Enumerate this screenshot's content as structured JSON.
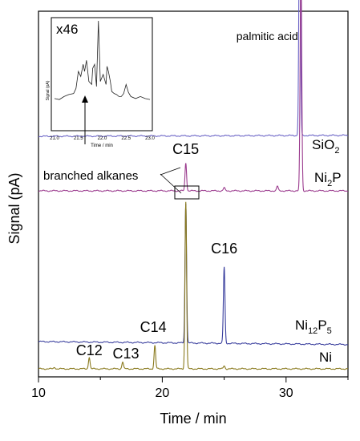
{
  "chart_data": {
    "type": "line",
    "xlabel": "Time / min",
    "ylabel": "Signal (pA)",
    "xlim": [
      10,
      35
    ],
    "x_ticks": [
      "10",
      "20",
      "30"
    ],
    "series": [
      {
        "name": "SiO2",
        "label_main": "SiO",
        "label_sub": "2",
        "color": "#6a63c6",
        "peaks": [
          {
            "x": 31.1,
            "height_pA": 330,
            "label": "palmitic acid"
          }
        ]
      },
      {
        "name": "Ni2P",
        "label_main": "Ni",
        "label_sub": "2",
        "label_end": "P",
        "color": "#9b3b8e",
        "peaks": [
          {
            "x": 21.9,
            "height_pA": 36,
            "label": "C15"
          },
          {
            "x": 25.0,
            "height_pA": 4,
            "label": ""
          },
          {
            "x": 29.3,
            "height_pA": 6,
            "label": ""
          },
          {
            "x": 31.2,
            "height_pA": 300,
            "label": ""
          }
        ]
      },
      {
        "name": "Ni12P5",
        "label_main": "Ni",
        "label_sub": "12",
        "label_mid": "P",
        "label_sub2": "5",
        "color": "#3a3f9e",
        "peaks": [
          {
            "x": 21.9,
            "height_pA": 180,
            "label": ""
          },
          {
            "x": 25.0,
            "height_pA": 98,
            "label": "C16"
          }
        ]
      },
      {
        "name": "Ni",
        "label_main": "Ni",
        "color": "#8a7a1e",
        "peaks": [
          {
            "x": 11.3,
            "height_pA": 2,
            "label": ""
          },
          {
            "x": 14.1,
            "height_pA": 15,
            "label": "C12"
          },
          {
            "x": 16.8,
            "height_pA": 9,
            "label": "C13"
          },
          {
            "x": 19.4,
            "height_pA": 30,
            "label": "C14"
          },
          {
            "x": 21.9,
            "height_pA": 215,
            "label": ""
          },
          {
            "x": 25.0,
            "height_pA": 4,
            "label": ""
          }
        ]
      }
    ],
    "annotation": "branched alkanes",
    "inset": {
      "magnification": "x46",
      "xlabel": "Time / min",
      "ylabel": "Signal (pA)",
      "xlim": [
        21.0,
        23.0
      ],
      "x_ticks": [
        "21.0",
        "21.5",
        "22.0",
        "22.5",
        "23.0"
      ],
      "trace": [
        [
          21.0,
          0.28
        ],
        [
          21.1,
          0.27
        ],
        [
          21.2,
          0.3
        ],
        [
          21.3,
          0.32
        ],
        [
          21.4,
          0.33
        ],
        [
          21.45,
          0.38
        ],
        [
          21.5,
          0.55
        ],
        [
          21.55,
          0.5
        ],
        [
          21.6,
          0.62
        ],
        [
          21.63,
          0.55
        ],
        [
          21.67,
          0.66
        ],
        [
          21.72,
          0.45
        ],
        [
          21.78,
          0.42
        ],
        [
          21.8,
          0.58
        ],
        [
          21.84,
          0.62
        ],
        [
          21.88,
          0.4
        ],
        [
          21.92,
          1.2
        ],
        [
          21.96,
          0.45
        ],
        [
          22.02,
          0.52
        ],
        [
          22.08,
          0.42
        ],
        [
          22.1,
          0.6
        ],
        [
          22.13,
          0.55
        ],
        [
          22.17,
          0.45
        ],
        [
          22.2,
          0.35
        ],
        [
          22.25,
          0.33
        ],
        [
          22.3,
          0.32
        ],
        [
          22.35,
          0.3
        ],
        [
          22.4,
          0.3
        ],
        [
          22.45,
          0.33
        ],
        [
          22.5,
          0.42
        ],
        [
          22.55,
          0.34
        ],
        [
          22.6,
          0.3
        ],
        [
          22.7,
          0.28
        ],
        [
          22.8,
          0.3
        ],
        [
          22.9,
          0.28
        ],
        [
          23.0,
          0.27
        ]
      ]
    }
  }
}
